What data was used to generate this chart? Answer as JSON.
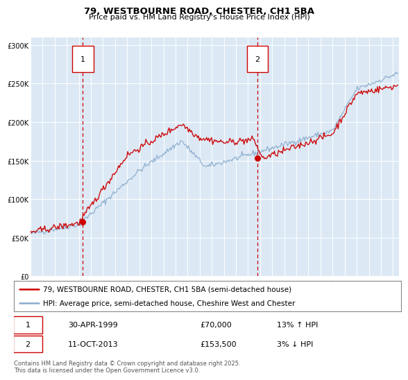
{
  "title": "79, WESTBOURNE ROAD, CHESTER, CH1 5BA",
  "subtitle": "Price paid vs. HM Land Registry's House Price Index (HPI)",
  "bg_color": "#dce9f5",
  "legend_label_red": "79, WESTBOURNE ROAD, CHESTER, CH1 5BA (semi-detached house)",
  "legend_label_blue": "HPI: Average price, semi-detached house, Cheshire West and Chester",
  "footer": "Contains HM Land Registry data © Crown copyright and database right 2025.\nThis data is licensed under the Open Government Licence v3.0.",
  "sale1_date": "30-APR-1999",
  "sale1_price": "£70,000",
  "sale1_hpi": "13% ↑ HPI",
  "sale2_date": "11-OCT-2013",
  "sale2_price": "£153,500",
  "sale2_hpi": "3% ↓ HPI",
  "xmin": 1995.0,
  "xmax": 2025.5,
  "ymin": 0,
  "ymax": 310000,
  "yticks": [
    0,
    50000,
    100000,
    150000,
    200000,
    250000,
    300000
  ],
  "ytick_labels": [
    "£0",
    "£50K",
    "£100K",
    "£150K",
    "£200K",
    "£250K",
    "£300K"
  ],
  "xticks": [
    1995,
    1996,
    1997,
    1998,
    1999,
    2000,
    2001,
    2002,
    2003,
    2004,
    2005,
    2006,
    2007,
    2008,
    2009,
    2010,
    2011,
    2012,
    2013,
    2014,
    2015,
    2016,
    2017,
    2018,
    2019,
    2020,
    2021,
    2022,
    2023,
    2024,
    2025
  ],
  "sale1_x": 1999.33,
  "sale1_y": 70000,
  "sale2_x": 2013.78,
  "sale2_y": 153500,
  "red_color": "#cc0000",
  "blue_color": "#88aacc",
  "vline_color": "#cc0000",
  "title_fontsize": 9.5,
  "subtitle_fontsize": 8.0,
  "tick_fontsize": 7.0,
  "legend_fontsize": 7.5,
  "info_fontsize": 8.0,
  "footer_fontsize": 6.0
}
